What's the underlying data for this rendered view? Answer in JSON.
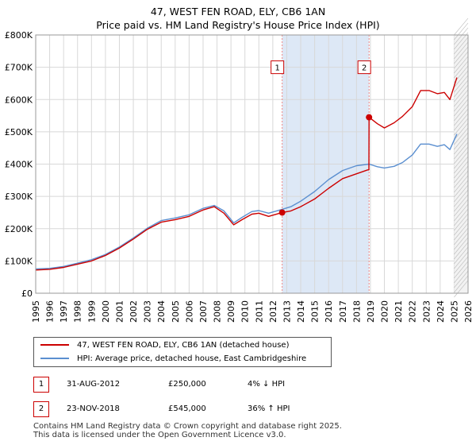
{
  "chart_data": {
    "type": "line",
    "title": "47, WEST FEN ROAD, ELY, CB6 1AN",
    "subtitle": "Price paid vs. HM Land Registry's House Price Index (HPI)",
    "xlim": [
      1995,
      2026
    ],
    "ylim": [
      0,
      800000
    ],
    "x_ticks": [
      "1995",
      "1996",
      "1997",
      "1998",
      "1999",
      "2000",
      "2001",
      "2002",
      "2003",
      "2004",
      "2005",
      "2006",
      "2007",
      "2008",
      "2009",
      "2010",
      "2011",
      "2012",
      "2013",
      "2014",
      "2015",
      "2016",
      "2017",
      "2018",
      "2019",
      "2020",
      "2021",
      "2022",
      "2023",
      "2024",
      "2025",
      "2026"
    ],
    "y_ticks": [
      {
        "value": 0,
        "label": "£0"
      },
      {
        "value": 100000,
        "label": "£100K"
      },
      {
        "value": 200000,
        "label": "£200K"
      },
      {
        "value": 300000,
        "label": "£300K"
      },
      {
        "value": 400000,
        "label": "£400K"
      },
      {
        "value": 500000,
        "label": "£500K"
      },
      {
        "value": 600000,
        "label": "£600K"
      },
      {
        "value": 700000,
        "label": "£700K"
      },
      {
        "value": 800000,
        "label": "£800K"
      }
    ],
    "grid": true,
    "shaded_span": [
      2012.67,
      2018.9
    ],
    "forecast_start": 2025.0,
    "series": [
      {
        "name": "47, WEST FEN ROAD, ELY, CB6 1AN (detached house)",
        "color": "#cc0000",
        "points": [
          [
            1995,
            72000
          ],
          [
            1996,
            74000
          ],
          [
            1997,
            80000
          ],
          [
            1998,
            90000
          ],
          [
            1999,
            100000
          ],
          [
            2000,
            117000
          ],
          [
            2001,
            140000
          ],
          [
            2002,
            168000
          ],
          [
            2003,
            198000
          ],
          [
            2004,
            220000
          ],
          [
            2005,
            228000
          ],
          [
            2006,
            238000
          ],
          [
            2007,
            258000
          ],
          [
            2007.8,
            268000
          ],
          [
            2008.5,
            248000
          ],
          [
            2009.2,
            212000
          ],
          [
            2009.8,
            228000
          ],
          [
            2010.5,
            245000
          ],
          [
            2011,
            248000
          ],
          [
            2011.7,
            238000
          ],
          [
            2012.67,
            250000
          ],
          [
            2013.3,
            255000
          ],
          [
            2014,
            268000
          ],
          [
            2015,
            292000
          ],
          [
            2016,
            325000
          ],
          [
            2017,
            355000
          ],
          [
            2018,
            370000
          ],
          [
            2018.8,
            382000
          ],
          [
            2018.89,
            382000
          ],
          [
            2018.9,
            545000
          ],
          [
            2019.5,
            525000
          ],
          [
            2020,
            512000
          ],
          [
            2020.7,
            528000
          ],
          [
            2021.3,
            548000
          ],
          [
            2022,
            578000
          ],
          [
            2022.6,
            628000
          ],
          [
            2023.2,
            628000
          ],
          [
            2023.8,
            618000
          ],
          [
            2024.3,
            622000
          ],
          [
            2024.7,
            600000
          ],
          [
            2025.2,
            668000
          ]
        ]
      },
      {
        "name": "HPI: Average price, detached house, East Cambridgeshire",
        "color": "#5b8fd0",
        "points": [
          [
            1995,
            75000
          ],
          [
            1996,
            77000
          ],
          [
            1997,
            83000
          ],
          [
            1998,
            93000
          ],
          [
            1999,
            104000
          ],
          [
            2000,
            120000
          ],
          [
            2001,
            143000
          ],
          [
            2002,
            171000
          ],
          [
            2003,
            201000
          ],
          [
            2004,
            225000
          ],
          [
            2005,
            233000
          ],
          [
            2006,
            243000
          ],
          [
            2007,
            263000
          ],
          [
            2007.8,
            272000
          ],
          [
            2008.5,
            255000
          ],
          [
            2009.2,
            218000
          ],
          [
            2009.8,
            235000
          ],
          [
            2010.5,
            253000
          ],
          [
            2011,
            256000
          ],
          [
            2011.7,
            248000
          ],
          [
            2012.67,
            260000
          ],
          [
            2013.3,
            268000
          ],
          [
            2014,
            285000
          ],
          [
            2015,
            315000
          ],
          [
            2016,
            352000
          ],
          [
            2017,
            380000
          ],
          [
            2018,
            395000
          ],
          [
            2018.9,
            400000
          ],
          [
            2019.5,
            392000
          ],
          [
            2020,
            388000
          ],
          [
            2020.7,
            393000
          ],
          [
            2021.3,
            405000
          ],
          [
            2022,
            428000
          ],
          [
            2022.6,
            462000
          ],
          [
            2023.2,
            462000
          ],
          [
            2023.8,
            455000
          ],
          [
            2024.3,
            460000
          ],
          [
            2024.7,
            445000
          ],
          [
            2025.2,
            493000
          ]
        ]
      }
    ],
    "markers": [
      {
        "label": "1",
        "x": 2012.67,
        "y": 250000,
        "label_y": 700000
      },
      {
        "label": "2",
        "x": 2018.9,
        "y": 545000,
        "label_y": 700000
      }
    ]
  },
  "legend": {
    "items": [
      {
        "label": "47, WEST FEN ROAD, ELY, CB6 1AN (detached house)",
        "color": "#cc0000"
      },
      {
        "label": "HPI: Average price, detached house, East Cambridgeshire",
        "color": "#5b8fd0"
      }
    ]
  },
  "transactions": [
    {
      "num": "1",
      "date": "31-AUG-2012",
      "price": "£250,000",
      "hpi": "4% ↓ HPI"
    },
    {
      "num": "2",
      "date": "23-NOV-2018",
      "price": "£545,000",
      "hpi": "36% ↑ HPI"
    }
  ],
  "footer": {
    "line1": "Contains HM Land Registry data © Crown copyright and database right 2025.",
    "line2": "This data is licensed under the Open Government Licence v3.0."
  }
}
